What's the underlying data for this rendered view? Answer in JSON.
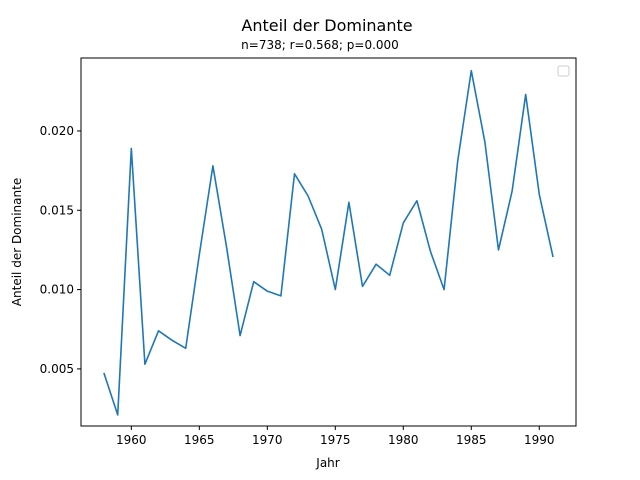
{
  "chart_data": {
    "type": "line",
    "title": "Anteil der Dominante",
    "subtitle": "n=738; r=0.568; p=0.000",
    "xlabel": "Jahr",
    "ylabel": "Anteil der Dominante",
    "xlim": [
      1956.3,
      1992.7
    ],
    "ylim": [
      0.0014,
      0.0246
    ],
    "xticks": [
      1960,
      1965,
      1970,
      1975,
      1980,
      1985,
      1990
    ],
    "yticks": [
      0.005,
      0.01,
      0.015,
      0.02
    ],
    "ytick_labels": [
      "0.005",
      "0.010",
      "0.015",
      "0.020"
    ],
    "grid": false,
    "legend": {
      "placement": "top-right",
      "entries": []
    },
    "series": [
      {
        "color": "#1f77b4",
        "x": [
          1958,
          1959,
          1960,
          1961,
          1962,
          1963,
          1964,
          1965,
          1966,
          1967,
          1968,
          1969,
          1970,
          1971,
          1972,
          1973,
          1974,
          1975,
          1976,
          1977,
          1978,
          1979,
          1980,
          1981,
          1982,
          1983,
          1984,
          1985,
          1986,
          1987,
          1988,
          1989,
          1990,
          1991
        ],
        "y": [
          0.0047,
          0.0021,
          0.0189,
          0.0053,
          0.0074,
          0.0068,
          0.0063,
          0.0122,
          0.0178,
          0.0127,
          0.0071,
          0.0105,
          0.0099,
          0.0096,
          0.0173,
          0.0159,
          0.0138,
          0.01,
          0.0155,
          0.0102,
          0.0116,
          0.0109,
          0.0142,
          0.0156,
          0.0124,
          0.01,
          0.0181,
          0.0238,
          0.0193,
          0.0125,
          0.0162,
          0.0223,
          0.016,
          0.0121
        ]
      }
    ]
  }
}
